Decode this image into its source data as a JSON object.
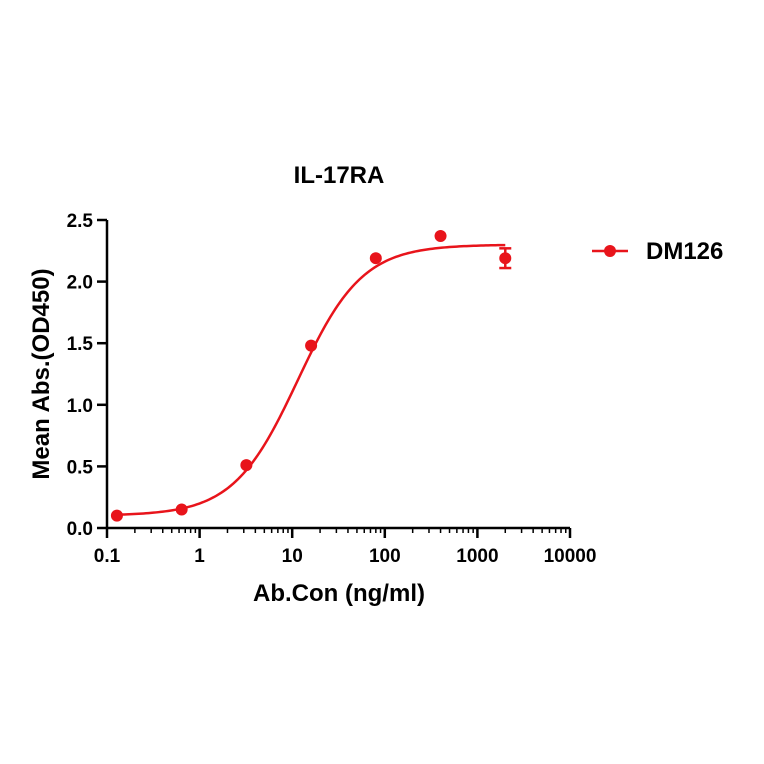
{
  "chart_data": {
    "type": "scatter",
    "title": "IL-17RA",
    "xlabel": "Ab.Con (ng/ml)",
    "ylabel": "Mean Abs.(OD450)",
    "xscale": "log",
    "xlim": [
      0.1,
      10000
    ],
    "ylim": [
      0,
      2.5
    ],
    "x_ticks": [
      0.1,
      1,
      10,
      100,
      1000,
      10000
    ],
    "x_tick_labels": [
      "0.1",
      "1",
      "10",
      "100",
      "1000",
      "10000"
    ],
    "y_ticks": [
      0,
      0.5,
      1,
      1.5,
      2,
      2.5
    ],
    "y_tick_labels": [
      "0.0",
      "0.5",
      "1.0",
      "1.5",
      "2.0",
      "2.5"
    ],
    "grid": false,
    "legend_position": "right",
    "series": [
      {
        "name": "DM126",
        "color": "#e8141b",
        "x": [
          0.128,
          0.64,
          3.2,
          16,
          80,
          400,
          2000
        ],
        "y": [
          0.1,
          0.15,
          0.51,
          1.48,
          2.19,
          2.37,
          2.19
        ],
        "error": [
          0,
          0,
          0,
          0,
          0,
          0,
          0.08
        ],
        "fit": {
          "model": "4PL",
          "bottom": 0.1,
          "top": 2.3,
          "ec50": 11.5,
          "hill": 1.25
        }
      }
    ]
  }
}
